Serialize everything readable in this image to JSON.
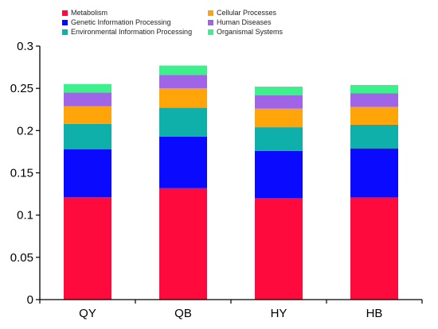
{
  "chart_data": {
    "type": "bar",
    "stacked": true,
    "categories": [
      "QY",
      "QB",
      "HY",
      "HB"
    ],
    "series": [
      {
        "name": "Metabolism",
        "color": "#ff0a3c",
        "values": [
          0.121,
          0.132,
          0.12,
          0.121
        ]
      },
      {
        "name": "Genetic Information Processing",
        "color": "#0a0aff",
        "values": [
          0.057,
          0.061,
          0.056,
          0.058
        ]
      },
      {
        "name": "Environmental Information Processing",
        "color": "#0fafaa",
        "values": [
          0.03,
          0.034,
          0.028,
          0.028
        ]
      },
      {
        "name": "Cellular Processes",
        "color": "#ffa50a",
        "values": [
          0.021,
          0.023,
          0.022,
          0.021
        ]
      },
      {
        "name": "Human Diseases",
        "color": "#a064e6",
        "values": [
          0.016,
          0.016,
          0.016,
          0.016
        ]
      },
      {
        "name": "Organismal Systems",
        "color": "#3cf08c",
        "values": [
          0.01,
          0.011,
          0.01,
          0.01
        ]
      }
    ],
    "ylim": [
      0,
      0.3
    ],
    "yticks": [
      "0",
      "0.05",
      "0.1",
      "0.15",
      "0.2",
      "0.25",
      "0.3"
    ],
    "ytick_values": [
      0,
      0.05,
      0.1,
      0.15,
      0.2,
      0.25,
      0.3
    ],
    "legend_position": "top",
    "grid": false,
    "title": "",
    "xlabel": "",
    "ylabel": ""
  }
}
